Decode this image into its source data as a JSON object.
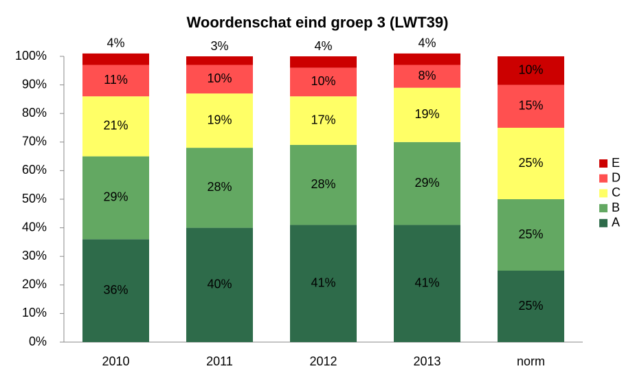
{
  "chart_data": {
    "type": "stacked_bar",
    "title": "Woordenschat eind groep 3 (LWT39)",
    "categories": [
      "2010",
      "2011",
      "2012",
      "2013",
      "norm"
    ],
    "series": [
      {
        "name": "A",
        "color": "#2e6b4a",
        "values": [
          36,
          40,
          41,
          41,
          25
        ],
        "value_labels": [
          "36%",
          "40%",
          "41%",
          "41%",
          "25%"
        ]
      },
      {
        "name": "B",
        "color": "#63a862",
        "values": [
          29,
          28,
          28,
          29,
          25
        ],
        "value_labels": [
          "29%",
          "28%",
          "28%",
          "29%",
          "25%"
        ]
      },
      {
        "name": "C",
        "color": "#ffff66",
        "values": [
          21,
          19,
          17,
          19,
          25
        ],
        "value_labels": [
          "21%",
          "19%",
          "17%",
          "19%",
          "25%"
        ]
      },
      {
        "name": "D",
        "color": "#ff5050",
        "values": [
          11,
          10,
          10,
          8,
          15
        ],
        "value_labels": [
          "11%",
          "10%",
          "10%",
          "8%",
          "15%"
        ]
      },
      {
        "name": "E",
        "color": "#cc0000",
        "values": [
          4,
          3,
          4,
          4,
          10
        ],
        "value_labels": [
          "4%",
          "3%",
          "4%",
          "4%",
          "10%"
        ]
      }
    ],
    "ylim": [
      0,
      100
    ],
    "yticks": [
      {
        "value": 0,
        "label": "0%"
      },
      {
        "value": 10,
        "label": "10%"
      },
      {
        "value": 20,
        "label": "20%"
      },
      {
        "value": 30,
        "label": "30%"
      },
      {
        "value": 40,
        "label": "40%"
      },
      {
        "value": 50,
        "label": "50%"
      },
      {
        "value": 60,
        "label": "60%"
      },
      {
        "value": 70,
        "label": "70%"
      },
      {
        "value": 80,
        "label": "80%"
      },
      {
        "value": 90,
        "label": "90%"
      },
      {
        "value": 100,
        "label": "100%"
      }
    ],
    "legend": "right",
    "grid": false
  }
}
